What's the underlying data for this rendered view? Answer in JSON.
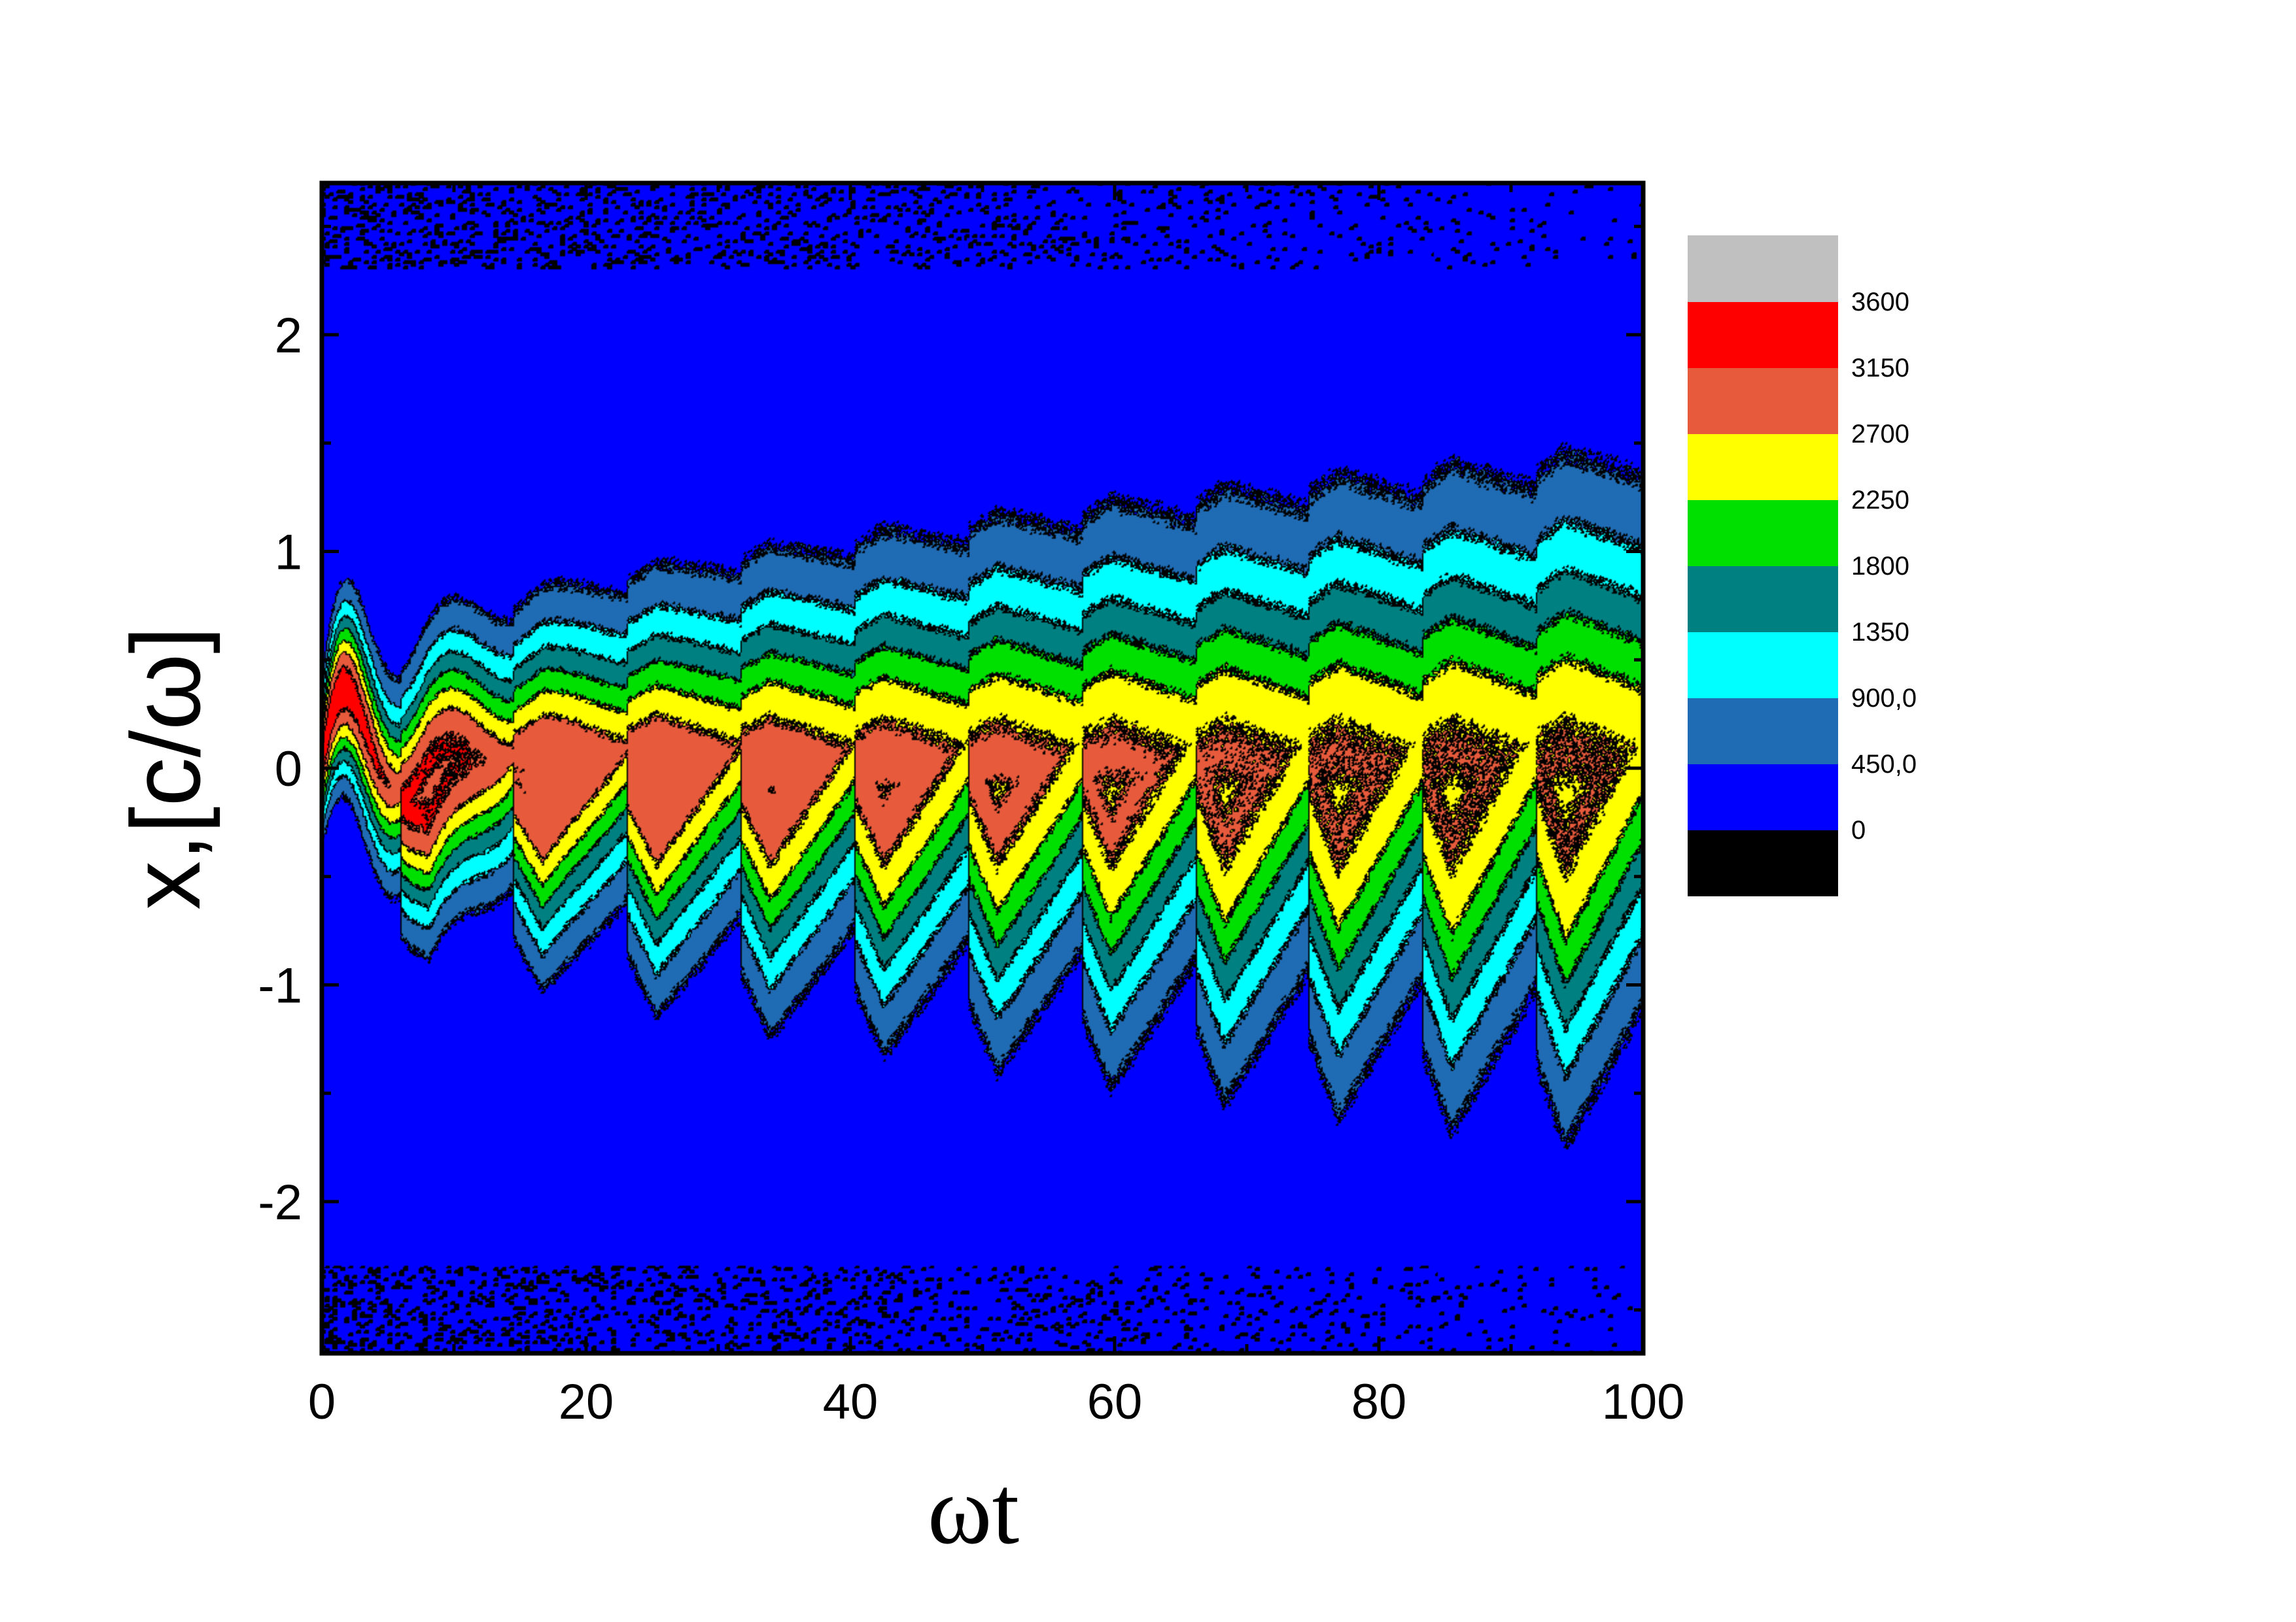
{
  "chart_data": {
    "type": "heatmap",
    "title": "",
    "xlabel": "ωt",
    "ylabel": "x,[c/ω]",
    "xlim": [
      0,
      100
    ],
    "ylim": [
      -2.7,
      2.7
    ],
    "x_ticks": [
      0,
      20,
      40,
      60,
      80,
      100
    ],
    "x_tick_labels": [
      "0",
      "20",
      "40",
      "60",
      "80",
      "100"
    ],
    "y_ticks": [
      -2,
      -1,
      0,
      1,
      2
    ],
    "y_tick_labels": [
      "-2",
      "-1",
      "0",
      "1",
      "2"
    ],
    "legend_position": "right",
    "grid": false,
    "levels": [
      {
        "label": "0",
        "color": "#000000"
      },
      {
        "label": "450,0",
        "color": "#0000ff"
      },
      {
        "label": "900,0",
        "color": "#1f6bb4"
      },
      {
        "label": "1350",
        "color": "#00ffff"
      },
      {
        "label": "1800",
        "color": "#008080"
      },
      {
        "label": "2250",
        "color": "#00e000"
      },
      {
        "label": "2700",
        "color": "#ffff00"
      },
      {
        "label": "3150",
        "color": "#e85a3c"
      },
      {
        "label": "3600",
        "color": "#ff0000"
      },
      {
        "label": "",
        "color": "#c0c0c0"
      }
    ],
    "field_model": {
      "peak_value": 3400,
      "oscillation_period": 8.6,
      "oscillation_amplitude_x": [
        0.25,
        0.42
      ],
      "envelope_halfwidth_start": 0.35,
      "envelope_halfwidth_end": 1.55
    }
  }
}
